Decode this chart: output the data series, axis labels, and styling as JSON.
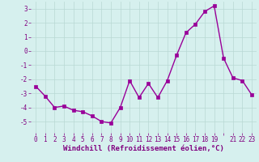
{
  "x": [
    0,
    1,
    2,
    3,
    4,
    5,
    6,
    7,
    8,
    9,
    10,
    11,
    12,
    13,
    14,
    15,
    16,
    17,
    18,
    19,
    20,
    21,
    22,
    23
  ],
  "y": [
    -2.5,
    -3.2,
    -4.0,
    -3.9,
    -4.2,
    -4.3,
    -4.6,
    -5.0,
    -5.1,
    -4.0,
    -2.1,
    -3.3,
    -2.3,
    -3.3,
    -2.1,
    -0.3,
    1.3,
    1.9,
    2.8,
    3.2,
    -0.5,
    -1.9,
    -2.1,
    -3.1
  ],
  "line_color": "#990099",
  "marker": "s",
  "markersize": 2.5,
  "linewidth": 1.0,
  "bg_color": "#d6f0ee",
  "grid_color": "#b8d8d4",
  "xlabel": "Windchill (Refroidissement éolien,°C)",
  "xlabel_color": "#800080",
  "xlabel_fontsize": 6.5,
  "tick_fontsize": 5.5,
  "tick_color": "#800080",
  "ylim": [
    -5.8,
    3.5
  ],
  "xlim": [
    -0.5,
    23.5
  ],
  "yticks": [
    -5,
    -4,
    -3,
    -2,
    -1,
    0,
    1,
    2,
    3
  ],
  "xtick_labels": [
    "0",
    "1",
    "2",
    "3",
    "4",
    "5",
    "6",
    "7",
    "8",
    "9",
    "10",
    "11",
    "12",
    "13",
    "14",
    "15",
    "16",
    "17",
    "18",
    "19",
    "",
    "21",
    "22",
    "23"
  ]
}
